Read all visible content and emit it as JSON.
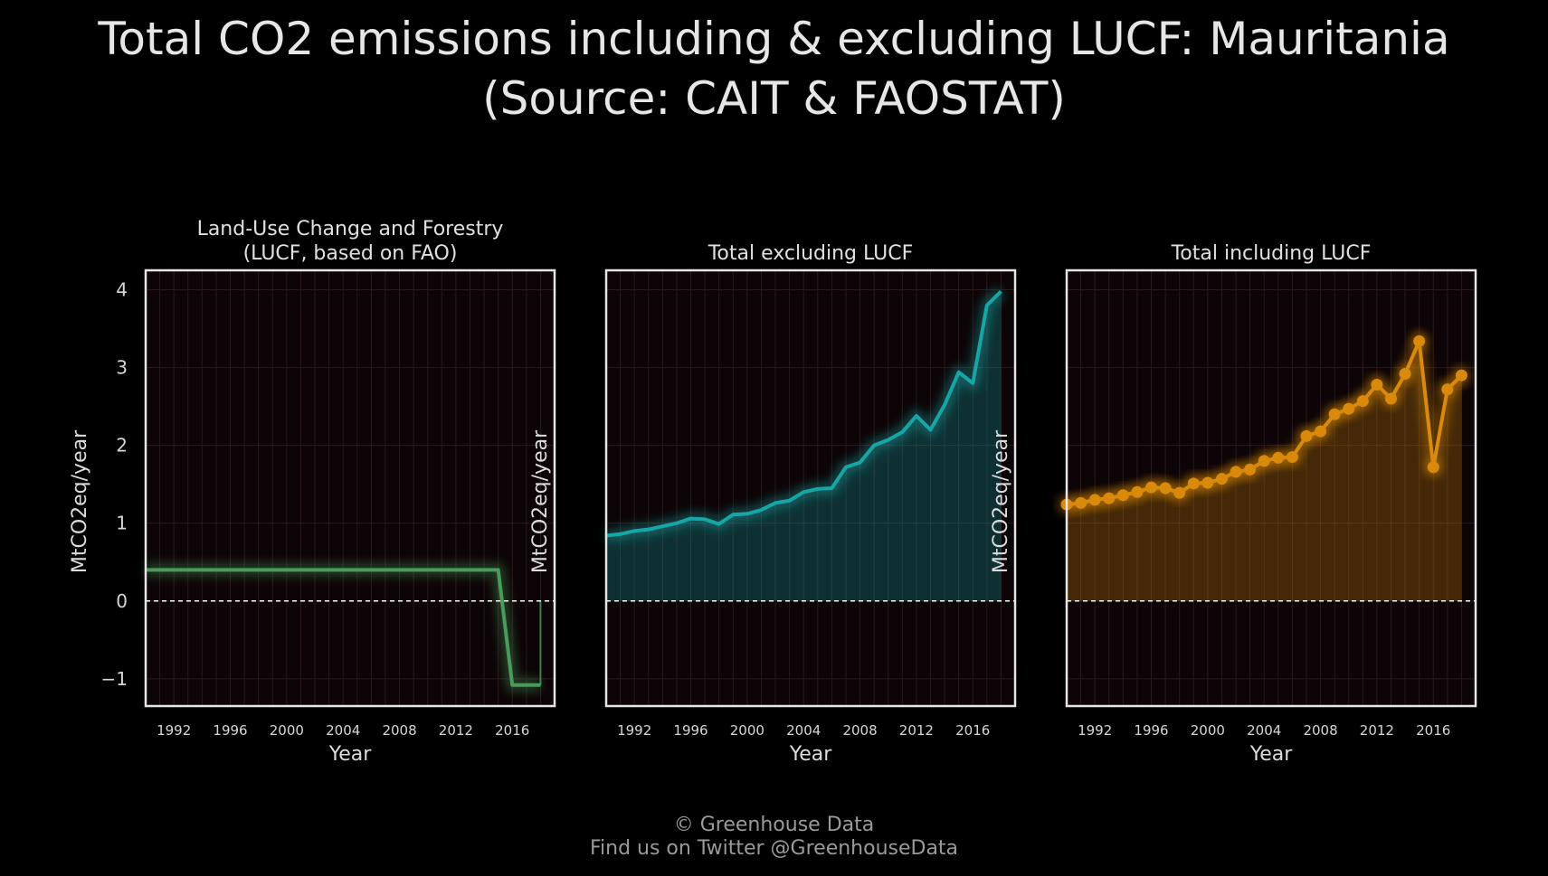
{
  "title": {
    "line1": "Total CO2 emissions including & excluding LUCF: Mauritania",
    "line2": "(Source: CAIT & FAOSTAT)"
  },
  "footer": {
    "line1": "© Greenhouse Data",
    "line2": "Find us on Twitter @GreenhouseData"
  },
  "colors": {
    "background": "#000000",
    "plot_bg": "#0c0406",
    "lucf": "#4a9a5c",
    "excl": "#17a6a6",
    "incl": "#d98a0c",
    "zero_line": "#ffffff",
    "frame": "#e6e6e6"
  },
  "chart_data": [
    {
      "type": "line",
      "title": [
        "Land-Use Change and Forestry",
        "(LUCF, based on FAO)"
      ],
      "xlabel": "Year",
      "ylabel": "MtCO2eq/year",
      "xlim": [
        1990,
        2019
      ],
      "ylim": [
        -1.35,
        4.25
      ],
      "yticks": [
        -1,
        0,
        1,
        2,
        3,
        4
      ],
      "xticks": [
        1992,
        1996,
        2000,
        2004,
        2008,
        2012,
        2016
      ],
      "fill": false,
      "markers": false,
      "x": [
        1990,
        1991,
        1992,
        1993,
        1994,
        1995,
        1996,
        1997,
        1998,
        1999,
        2000,
        2001,
        2002,
        2003,
        2004,
        2005,
        2006,
        2007,
        2008,
        2009,
        2010,
        2011,
        2012,
        2013,
        2014,
        2015,
        2016,
        2017,
        2018
      ],
      "values": [
        0.4,
        0.4,
        0.4,
        0.4,
        0.4,
        0.4,
        0.4,
        0.4,
        0.4,
        0.4,
        0.4,
        0.4,
        0.4,
        0.4,
        0.4,
        0.4,
        0.4,
        0.4,
        0.4,
        0.4,
        0.4,
        0.4,
        0.4,
        0.4,
        0.4,
        0.4,
        -1.08,
        -1.08,
        -1.08
      ]
    },
    {
      "type": "area",
      "title": [
        "Total excluding LUCF"
      ],
      "xlabel": "Year",
      "ylabel": "MtCO2eq/year",
      "xlim": [
        1990,
        2019
      ],
      "ylim": [
        -1.35,
        4.25
      ],
      "yticks": [
        -1,
        0,
        1,
        2,
        3,
        4
      ],
      "xticks": [
        1992,
        1996,
        2000,
        2004,
        2008,
        2012,
        2016
      ],
      "fill": true,
      "markers": false,
      "x": [
        1990,
        1991,
        1992,
        1993,
        1994,
        1995,
        1996,
        1997,
        1998,
        1999,
        2000,
        2001,
        2002,
        2003,
        2004,
        2005,
        2006,
        2007,
        2008,
        2009,
        2010,
        2011,
        2012,
        2013,
        2014,
        2015,
        2016,
        2017,
        2018
      ],
      "values": [
        0.84,
        0.86,
        0.9,
        0.92,
        0.96,
        1.0,
        1.06,
        1.05,
        0.99,
        1.11,
        1.12,
        1.17,
        1.26,
        1.29,
        1.4,
        1.44,
        1.45,
        1.72,
        1.78,
        2.0,
        2.07,
        2.17,
        2.38,
        2.2,
        2.52,
        2.94,
        2.8,
        3.8,
        3.98
      ]
    },
    {
      "type": "area",
      "title": [
        "Total including LUCF"
      ],
      "xlabel": "Year",
      "ylabel": "MtCO2eq/year",
      "xlim": [
        1990,
        2019
      ],
      "ylim": [
        -1.35,
        4.25
      ],
      "yticks": [
        -1,
        0,
        1,
        2,
        3,
        4
      ],
      "xticks": [
        1992,
        1996,
        2000,
        2004,
        2008,
        2012,
        2016
      ],
      "fill": true,
      "markers": true,
      "x": [
        1990,
        1991,
        1992,
        1993,
        1994,
        1995,
        1996,
        1997,
        1998,
        1999,
        2000,
        2001,
        2002,
        2003,
        2004,
        2005,
        2006,
        2007,
        2008,
        2009,
        2010,
        2011,
        2012,
        2013,
        2014,
        2015,
        2016,
        2017,
        2018
      ],
      "values": [
        1.24,
        1.26,
        1.3,
        1.32,
        1.36,
        1.4,
        1.46,
        1.45,
        1.39,
        1.51,
        1.52,
        1.57,
        1.66,
        1.69,
        1.8,
        1.84,
        1.85,
        2.12,
        2.18,
        2.4,
        2.47,
        2.57,
        2.78,
        2.6,
        2.92,
        3.34,
        1.72,
        2.72,
        2.9
      ]
    }
  ]
}
